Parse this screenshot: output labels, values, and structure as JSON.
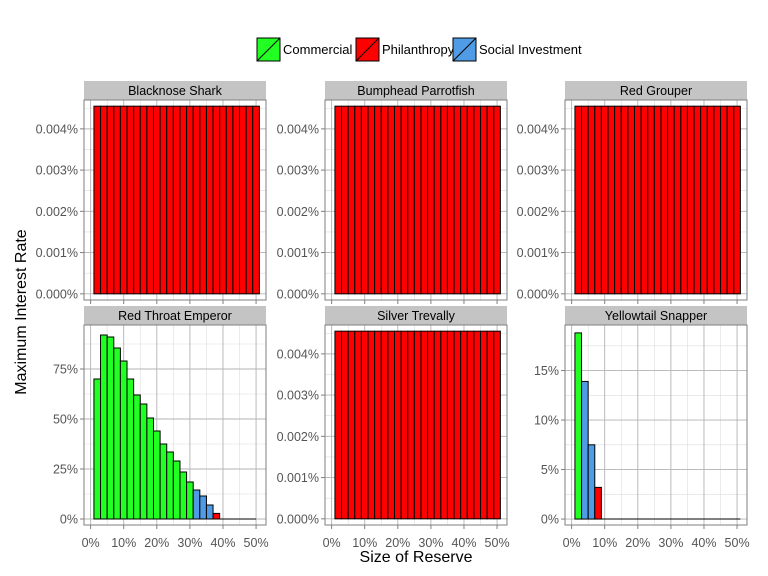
{
  "chart_data": {
    "type": "bar",
    "xlabel": "Size of Reserve",
    "ylabel": "Maximum Interest Rate",
    "x_ticks": [
      "0%",
      "10%",
      "20%",
      "30%",
      "40%",
      "50%"
    ],
    "x_tick_values": [
      0,
      10,
      20,
      30,
      40,
      50
    ],
    "xlim": [
      -2,
      53
    ],
    "legend": {
      "placement": "top",
      "entries": [
        {
          "name": "Commercial",
          "color": "#22ff22"
        },
        {
          "name": "Philanthropy",
          "color": "#ff0000"
        },
        {
          "name": "Social Investment",
          "color": "#4f9be6"
        }
      ]
    },
    "grid": true,
    "panels": [
      {
        "title": "Blacknose Shark",
        "ylim": [
          -0.00015,
          0.0047
        ],
        "y_ticks": [
          "0.000%",
          "0.001%",
          "0.002%",
          "0.003%",
          "0.004%"
        ],
        "y_tick_values": [
          0,
          0.001,
          0.002,
          0.003,
          0.004
        ],
        "x_tick_labels_shown": false,
        "bars": [
          {
            "x": 2,
            "y": 0.00455,
            "cat": "Philanthropy"
          },
          {
            "x": 4,
            "y": 0.00455,
            "cat": "Philanthropy"
          },
          {
            "x": 6,
            "y": 0.00455,
            "cat": "Philanthropy"
          },
          {
            "x": 8,
            "y": 0.00455,
            "cat": "Philanthropy"
          },
          {
            "x": 10,
            "y": 0.00455,
            "cat": "Philanthropy"
          },
          {
            "x": 12,
            "y": 0.00455,
            "cat": "Philanthropy"
          },
          {
            "x": 14,
            "y": 0.00455,
            "cat": "Philanthropy"
          },
          {
            "x": 16,
            "y": 0.00455,
            "cat": "Philanthropy"
          },
          {
            "x": 18,
            "y": 0.00455,
            "cat": "Philanthropy"
          },
          {
            "x": 20,
            "y": 0.00455,
            "cat": "Philanthropy"
          },
          {
            "x": 22,
            "y": 0.00455,
            "cat": "Philanthropy"
          },
          {
            "x": 24,
            "y": 0.00455,
            "cat": "Philanthropy"
          },
          {
            "x": 26,
            "y": 0.00455,
            "cat": "Philanthropy"
          },
          {
            "x": 28,
            "y": 0.00455,
            "cat": "Philanthropy"
          },
          {
            "x": 30,
            "y": 0.00455,
            "cat": "Philanthropy"
          },
          {
            "x": 32,
            "y": 0.00455,
            "cat": "Philanthropy"
          },
          {
            "x": 34,
            "y": 0.00455,
            "cat": "Philanthropy"
          },
          {
            "x": 36,
            "y": 0.00455,
            "cat": "Philanthropy"
          },
          {
            "x": 38,
            "y": 0.00455,
            "cat": "Philanthropy"
          },
          {
            "x": 40,
            "y": 0.00455,
            "cat": "Philanthropy"
          },
          {
            "x": 42,
            "y": 0.00455,
            "cat": "Philanthropy"
          },
          {
            "x": 44,
            "y": 0.00455,
            "cat": "Philanthropy"
          },
          {
            "x": 46,
            "y": 0.00455,
            "cat": "Philanthropy"
          },
          {
            "x": 48,
            "y": 0.00455,
            "cat": "Philanthropy"
          },
          {
            "x": 50,
            "y": 0.00455,
            "cat": "Philanthropy"
          }
        ]
      },
      {
        "title": "Bumphead Parrotfish",
        "ylim": [
          -0.00015,
          0.0047
        ],
        "y_ticks": [
          "0.000%",
          "0.001%",
          "0.002%",
          "0.003%",
          "0.004%"
        ],
        "y_tick_values": [
          0,
          0.001,
          0.002,
          0.003,
          0.004
        ],
        "x_tick_labels_shown": false,
        "bars": [
          {
            "x": 2,
            "y": 0.00455,
            "cat": "Philanthropy"
          },
          {
            "x": 4,
            "y": 0.00455,
            "cat": "Philanthropy"
          },
          {
            "x": 6,
            "y": 0.00455,
            "cat": "Philanthropy"
          },
          {
            "x": 8,
            "y": 0.00455,
            "cat": "Philanthropy"
          },
          {
            "x": 10,
            "y": 0.00455,
            "cat": "Philanthropy"
          },
          {
            "x": 12,
            "y": 0.00455,
            "cat": "Philanthropy"
          },
          {
            "x": 14,
            "y": 0.00455,
            "cat": "Philanthropy"
          },
          {
            "x": 16,
            "y": 0.00455,
            "cat": "Philanthropy"
          },
          {
            "x": 18,
            "y": 0.00455,
            "cat": "Philanthropy"
          },
          {
            "x": 20,
            "y": 0.00455,
            "cat": "Philanthropy"
          },
          {
            "x": 22,
            "y": 0.00455,
            "cat": "Philanthropy"
          },
          {
            "x": 24,
            "y": 0.00455,
            "cat": "Philanthropy"
          },
          {
            "x": 26,
            "y": 0.00455,
            "cat": "Philanthropy"
          },
          {
            "x": 28,
            "y": 0.00455,
            "cat": "Philanthropy"
          },
          {
            "x": 30,
            "y": 0.00455,
            "cat": "Philanthropy"
          },
          {
            "x": 32,
            "y": 0.00455,
            "cat": "Philanthropy"
          },
          {
            "x": 34,
            "y": 0.00455,
            "cat": "Philanthropy"
          },
          {
            "x": 36,
            "y": 0.00455,
            "cat": "Philanthropy"
          },
          {
            "x": 38,
            "y": 0.00455,
            "cat": "Philanthropy"
          },
          {
            "x": 40,
            "y": 0.00455,
            "cat": "Philanthropy"
          },
          {
            "x": 42,
            "y": 0.00455,
            "cat": "Philanthropy"
          },
          {
            "x": 44,
            "y": 0.00455,
            "cat": "Philanthropy"
          },
          {
            "x": 46,
            "y": 0.00455,
            "cat": "Philanthropy"
          },
          {
            "x": 48,
            "y": 0.00455,
            "cat": "Philanthropy"
          },
          {
            "x": 50,
            "y": 0.00455,
            "cat": "Philanthropy"
          }
        ]
      },
      {
        "title": "Red Grouper",
        "ylim": [
          -0.00015,
          0.0047
        ],
        "y_ticks": [
          "0.000%",
          "0.001%",
          "0.002%",
          "0.003%",
          "0.004%"
        ],
        "y_tick_values": [
          0,
          0.001,
          0.002,
          0.003,
          0.004
        ],
        "x_tick_labels_shown": false,
        "bars": [
          {
            "x": 2,
            "y": 0.00455,
            "cat": "Philanthropy"
          },
          {
            "x": 4,
            "y": 0.00455,
            "cat": "Philanthropy"
          },
          {
            "x": 6,
            "y": 0.00455,
            "cat": "Philanthropy"
          },
          {
            "x": 8,
            "y": 0.00455,
            "cat": "Philanthropy"
          },
          {
            "x": 10,
            "y": 0.00455,
            "cat": "Philanthropy"
          },
          {
            "x": 12,
            "y": 0.00455,
            "cat": "Philanthropy"
          },
          {
            "x": 14,
            "y": 0.00455,
            "cat": "Philanthropy"
          },
          {
            "x": 16,
            "y": 0.00455,
            "cat": "Philanthropy"
          },
          {
            "x": 18,
            "y": 0.00455,
            "cat": "Philanthropy"
          },
          {
            "x": 20,
            "y": 0.00455,
            "cat": "Philanthropy"
          },
          {
            "x": 22,
            "y": 0.00455,
            "cat": "Philanthropy"
          },
          {
            "x": 24,
            "y": 0.00455,
            "cat": "Philanthropy"
          },
          {
            "x": 26,
            "y": 0.00455,
            "cat": "Philanthropy"
          },
          {
            "x": 28,
            "y": 0.00455,
            "cat": "Philanthropy"
          },
          {
            "x": 30,
            "y": 0.00455,
            "cat": "Philanthropy"
          },
          {
            "x": 32,
            "y": 0.00455,
            "cat": "Philanthropy"
          },
          {
            "x": 34,
            "y": 0.00455,
            "cat": "Philanthropy"
          },
          {
            "x": 36,
            "y": 0.00455,
            "cat": "Philanthropy"
          },
          {
            "x": 38,
            "y": 0.00455,
            "cat": "Philanthropy"
          },
          {
            "x": 40,
            "y": 0.00455,
            "cat": "Philanthropy"
          },
          {
            "x": 42,
            "y": 0.00455,
            "cat": "Philanthropy"
          },
          {
            "x": 44,
            "y": 0.00455,
            "cat": "Philanthropy"
          },
          {
            "x": 46,
            "y": 0.00455,
            "cat": "Philanthropy"
          },
          {
            "x": 48,
            "y": 0.00455,
            "cat": "Philanthropy"
          },
          {
            "x": 50,
            "y": 0.00455,
            "cat": "Philanthropy"
          }
        ]
      },
      {
        "title": "Red Throat Emperor",
        "ylim": [
          -0.03,
          0.97
        ],
        "y_ticks": [
          "0%",
          "25%",
          "50%",
          "75%"
        ],
        "y_tick_values": [
          0,
          0.25,
          0.5,
          0.75
        ],
        "x_tick_labels_shown": true,
        "bars": [
          {
            "x": 2,
            "y": 0.7,
            "cat": "Commercial"
          },
          {
            "x": 4,
            "y": 0.92,
            "cat": "Commercial"
          },
          {
            "x": 6,
            "y": 0.91,
            "cat": "Commercial"
          },
          {
            "x": 8,
            "y": 0.855,
            "cat": "Commercial"
          },
          {
            "x": 10,
            "y": 0.79,
            "cat": "Commercial"
          },
          {
            "x": 12,
            "y": 0.7,
            "cat": "Commercial"
          },
          {
            "x": 14,
            "y": 0.62,
            "cat": "Commercial"
          },
          {
            "x": 16,
            "y": 0.575,
            "cat": "Commercial"
          },
          {
            "x": 18,
            "y": 0.505,
            "cat": "Commercial"
          },
          {
            "x": 20,
            "y": 0.44,
            "cat": "Commercial"
          },
          {
            "x": 22,
            "y": 0.375,
            "cat": "Commercial"
          },
          {
            "x": 24,
            "y": 0.335,
            "cat": "Commercial"
          },
          {
            "x": 26,
            "y": 0.29,
            "cat": "Commercial"
          },
          {
            "x": 28,
            "y": 0.235,
            "cat": "Commercial"
          },
          {
            "x": 30,
            "y": 0.185,
            "cat": "Commercial"
          },
          {
            "x": 32,
            "y": 0.145,
            "cat": "Social Investment"
          },
          {
            "x": 34,
            "y": 0.115,
            "cat": "Social Investment"
          },
          {
            "x": 36,
            "y": 0.07,
            "cat": "Social Investment"
          },
          {
            "x": 38,
            "y": 0.028,
            "cat": "Philanthropy"
          }
        ],
        "baseline_to": 50
      },
      {
        "title": "Silver Trevally",
        "ylim": [
          -0.00015,
          0.0047
        ],
        "y_ticks": [
          "0.000%",
          "0.001%",
          "0.002%",
          "0.003%",
          "0.004%"
        ],
        "y_tick_values": [
          0,
          0.001,
          0.002,
          0.003,
          0.004
        ],
        "x_tick_labels_shown": true,
        "bars": [
          {
            "x": 2,
            "y": 0.00455,
            "cat": "Philanthropy"
          },
          {
            "x": 4,
            "y": 0.00455,
            "cat": "Philanthropy"
          },
          {
            "x": 6,
            "y": 0.00455,
            "cat": "Philanthropy"
          },
          {
            "x": 8,
            "y": 0.00455,
            "cat": "Philanthropy"
          },
          {
            "x": 10,
            "y": 0.00455,
            "cat": "Philanthropy"
          },
          {
            "x": 12,
            "y": 0.00455,
            "cat": "Philanthropy"
          },
          {
            "x": 14,
            "y": 0.00455,
            "cat": "Philanthropy"
          },
          {
            "x": 16,
            "y": 0.00455,
            "cat": "Philanthropy"
          },
          {
            "x": 18,
            "y": 0.00455,
            "cat": "Philanthropy"
          },
          {
            "x": 20,
            "y": 0.00455,
            "cat": "Philanthropy"
          },
          {
            "x": 22,
            "y": 0.00455,
            "cat": "Philanthropy"
          },
          {
            "x": 24,
            "y": 0.00455,
            "cat": "Philanthropy"
          },
          {
            "x": 26,
            "y": 0.00455,
            "cat": "Philanthropy"
          },
          {
            "x": 28,
            "y": 0.00455,
            "cat": "Philanthropy"
          },
          {
            "x": 30,
            "y": 0.00455,
            "cat": "Philanthropy"
          },
          {
            "x": 32,
            "y": 0.00455,
            "cat": "Philanthropy"
          },
          {
            "x": 34,
            "y": 0.00455,
            "cat": "Philanthropy"
          },
          {
            "x": 36,
            "y": 0.00455,
            "cat": "Philanthropy"
          },
          {
            "x": 38,
            "y": 0.00455,
            "cat": "Philanthropy"
          },
          {
            "x": 40,
            "y": 0.00455,
            "cat": "Philanthropy"
          },
          {
            "x": 42,
            "y": 0.00455,
            "cat": "Philanthropy"
          },
          {
            "x": 44,
            "y": 0.00455,
            "cat": "Philanthropy"
          },
          {
            "x": 46,
            "y": 0.00455,
            "cat": "Philanthropy"
          },
          {
            "x": 48,
            "y": 0.00455,
            "cat": "Philanthropy"
          },
          {
            "x": 50,
            "y": 0.00455,
            "cat": "Philanthropy"
          }
        ]
      },
      {
        "title": "Yellowtail Snapper",
        "ylim": [
          -0.006,
          0.196
        ],
        "y_ticks": [
          "0%",
          "5%",
          "10%",
          "15%"
        ],
        "y_tick_values": [
          0,
          0.05,
          0.1,
          0.15
        ],
        "x_tick_labels_shown": true,
        "bars": [
          {
            "x": 2,
            "y": 0.188,
            "cat": "Commercial"
          },
          {
            "x": 4,
            "y": 0.139,
            "cat": "Social Investment"
          },
          {
            "x": 6,
            "y": 0.075,
            "cat": "Social Investment"
          },
          {
            "x": 8,
            "y": 0.032,
            "cat": "Philanthropy"
          }
        ],
        "baseline_to": 51
      }
    ]
  }
}
